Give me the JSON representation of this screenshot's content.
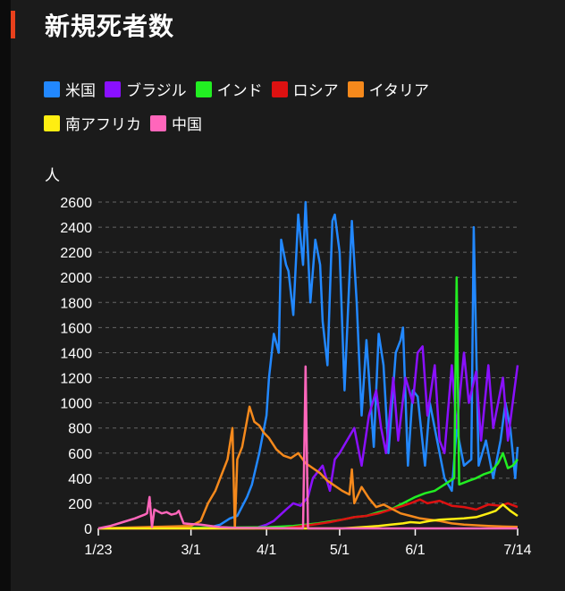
{
  "title": "新規死者数",
  "chart_data": {
    "type": "line",
    "title": "新規死者数",
    "ylabel": "人",
    "xlabel": "",
    "ylim": [
      0,
      2600
    ],
    "yticks": [
      "0",
      "200",
      "400",
      "600",
      "800",
      "1000",
      "1200",
      "1400",
      "1600",
      "1800",
      "2000",
      "2200",
      "2400",
      "2600"
    ],
    "x_unit": "days since 1/23",
    "xlim": [
      0,
      172
    ],
    "xticks": [
      {
        "label": "1/23",
        "day": 0
      },
      {
        "label": "3/1",
        "day": 38
      },
      {
        "label": "4/1",
        "day": 69
      },
      {
        "label": "5/1",
        "day": 99
      },
      {
        "label": "6/1",
        "day": 130
      },
      {
        "label": "7/14",
        "day": 172
      }
    ],
    "grid": true,
    "legend_position": "top",
    "series": [
      {
        "name": "米国",
        "color": "#2288ff",
        "points": [
          [
            0,
            0
          ],
          [
            44,
            0
          ],
          [
            50,
            30
          ],
          [
            54,
            80
          ],
          [
            57,
            100
          ],
          [
            61,
            250
          ],
          [
            63,
            350
          ],
          [
            66,
            600
          ],
          [
            69,
            900
          ],
          [
            70,
            1200
          ],
          [
            72,
            1550
          ],
          [
            74,
            1400
          ],
          [
            75,
            2300
          ],
          [
            77,
            2100
          ],
          [
            78,
            2050
          ],
          [
            80,
            1700
          ],
          [
            82,
            2500
          ],
          [
            84,
            2100
          ],
          [
            85,
            2600
          ],
          [
            87,
            1800
          ],
          [
            89,
            2300
          ],
          [
            91,
            2100
          ],
          [
            92,
            1650
          ],
          [
            94,
            1300
          ],
          [
            96,
            2450
          ],
          [
            97,
            2500
          ],
          [
            99,
            2200
          ],
          [
            101,
            1100
          ],
          [
            104,
            2450
          ],
          [
            106,
            1800
          ],
          [
            108,
            900
          ],
          [
            110,
            1500
          ],
          [
            113,
            650
          ],
          [
            115,
            1550
          ],
          [
            117,
            1300
          ],
          [
            119,
            600
          ],
          [
            122,
            1400
          ],
          [
            124,
            1500
          ],
          [
            125,
            1600
          ],
          [
            127,
            500
          ],
          [
            129,
            1100
          ],
          [
            131,
            1050
          ],
          [
            134,
            500
          ],
          [
            136,
            1000
          ],
          [
            139,
            700
          ],
          [
            142,
            400
          ],
          [
            145,
            300
          ],
          [
            147,
            800
          ],
          [
            150,
            500
          ],
          [
            153,
            550
          ],
          [
            154,
            2400
          ],
          [
            156,
            500
          ],
          [
            159,
            700
          ],
          [
            162,
            400
          ],
          [
            165,
            700
          ],
          [
            167,
            1000
          ],
          [
            169,
            800
          ],
          [
            171,
            400
          ],
          [
            172,
            650
          ]
        ]
      },
      {
        "name": "ブラジル",
        "color": "#8a10ff",
        "points": [
          [
            0,
            0
          ],
          [
            64,
            0
          ],
          [
            69,
            30
          ],
          [
            72,
            60
          ],
          [
            77,
            150
          ],
          [
            80,
            200
          ],
          [
            83,
            180
          ],
          [
            86,
            250
          ],
          [
            88,
            400
          ],
          [
            92,
            500
          ],
          [
            95,
            300
          ],
          [
            97,
            550
          ],
          [
            99,
            600
          ],
          [
            102,
            700
          ],
          [
            105,
            800
          ],
          [
            108,
            500
          ],
          [
            111,
            900
          ],
          [
            114,
            1100
          ],
          [
            116,
            800
          ],
          [
            118,
            600
          ],
          [
            121,
            1200
          ],
          [
            123,
            700
          ],
          [
            126,
            1200
          ],
          [
            129,
            1000
          ],
          [
            131,
            1400
          ],
          [
            133,
            1450
          ],
          [
            135,
            900
          ],
          [
            138,
            1300
          ],
          [
            140,
            700
          ],
          [
            142,
            600
          ],
          [
            145,
            1300
          ],
          [
            147,
            800
          ],
          [
            150,
            1400
          ],
          [
            152,
            1000
          ],
          [
            155,
            1250
          ],
          [
            157,
            700
          ],
          [
            160,
            1300
          ],
          [
            162,
            800
          ],
          [
            166,
            1200
          ],
          [
            168,
            700
          ],
          [
            170,
            1000
          ],
          [
            172,
            1300
          ]
        ]
      },
      {
        "name": "インド",
        "color": "#22ee22",
        "points": [
          [
            0,
            0
          ],
          [
            70,
            10
          ],
          [
            80,
            20
          ],
          [
            90,
            40
          ],
          [
            100,
            70
          ],
          [
            105,
            90
          ],
          [
            110,
            100
          ],
          [
            115,
            130
          ],
          [
            120,
            150
          ],
          [
            125,
            200
          ],
          [
            130,
            250
          ],
          [
            134,
            280
          ],
          [
            138,
            300
          ],
          [
            142,
            350
          ],
          [
            146,
            400
          ],
          [
            147,
            2000
          ],
          [
            148,
            350
          ],
          [
            152,
            380
          ],
          [
            155,
            400
          ],
          [
            158,
            430
          ],
          [
            161,
            450
          ],
          [
            164,
            520
          ],
          [
            166,
            600
          ],
          [
            168,
            480
          ],
          [
            170,
            500
          ],
          [
            172,
            550
          ]
        ]
      },
      {
        "name": "ロシア",
        "color": "#dd1111",
        "points": [
          [
            0,
            0
          ],
          [
            75,
            0
          ],
          [
            80,
            10
          ],
          [
            88,
            30
          ],
          [
            95,
            50
          ],
          [
            100,
            70
          ],
          [
            105,
            90
          ],
          [
            110,
            100
          ],
          [
            115,
            120
          ],
          [
            120,
            150
          ],
          [
            125,
            180
          ],
          [
            128,
            200
          ],
          [
            132,
            230
          ],
          [
            135,
            200
          ],
          [
            140,
            220
          ],
          [
            145,
            180
          ],
          [
            150,
            170
          ],
          [
            155,
            150
          ],
          [
            160,
            190
          ],
          [
            165,
            180
          ],
          [
            168,
            200
          ],
          [
            172,
            170
          ]
        ]
      },
      {
        "name": "イタリア",
        "color": "#f5891c",
        "points": [
          [
            0,
            0
          ],
          [
            38,
            20
          ],
          [
            42,
            60
          ],
          [
            45,
            200
          ],
          [
            48,
            300
          ],
          [
            50,
            400
          ],
          [
            53,
            550
          ],
          [
            55,
            800
          ],
          [
            56,
            0
          ],
          [
            57,
            550
          ],
          [
            59,
            650
          ],
          [
            62,
            970
          ],
          [
            64,
            850
          ],
          [
            66,
            820
          ],
          [
            68,
            760
          ],
          [
            70,
            720
          ],
          [
            73,
            630
          ],
          [
            76,
            580
          ],
          [
            79,
            560
          ],
          [
            82,
            600
          ],
          [
            85,
            520
          ],
          [
            88,
            480
          ],
          [
            91,
            440
          ],
          [
            94,
            380
          ],
          [
            97,
            340
          ],
          [
            100,
            300
          ],
          [
            103,
            270
          ],
          [
            104,
            470
          ],
          [
            105,
            200
          ],
          [
            108,
            330
          ],
          [
            111,
            240
          ],
          [
            114,
            170
          ],
          [
            117,
            190
          ],
          [
            120,
            160
          ],
          [
            124,
            120
          ],
          [
            128,
            100
          ],
          [
            132,
            80
          ],
          [
            136,
            70
          ],
          [
            140,
            60
          ],
          [
            145,
            40
          ],
          [
            150,
            30
          ],
          [
            155,
            25
          ],
          [
            160,
            20
          ],
          [
            166,
            15
          ],
          [
            172,
            12
          ]
        ]
      },
      {
        "name": "南アフリカ",
        "color": "#ffee11",
        "points": [
          [
            0,
            0
          ],
          [
            100,
            0
          ],
          [
            108,
            10
          ],
          [
            115,
            20
          ],
          [
            120,
            30
          ],
          [
            125,
            40
          ],
          [
            128,
            50
          ],
          [
            132,
            45
          ],
          [
            136,
            60
          ],
          [
            140,
            70
          ],
          [
            145,
            75
          ],
          [
            150,
            80
          ],
          [
            155,
            90
          ],
          [
            160,
            120
          ],
          [
            163,
            140
          ],
          [
            166,
            190
          ],
          [
            169,
            140
          ],
          [
            172,
            100
          ]
        ]
      },
      {
        "name": "中国",
        "color": "#ff66bb",
        "points": [
          [
            0,
            0
          ],
          [
            5,
            20
          ],
          [
            10,
            50
          ],
          [
            15,
            80
          ],
          [
            19,
            110
          ],
          [
            20,
            120
          ],
          [
            21,
            250
          ],
          [
            22,
            10
          ],
          [
            23,
            150
          ],
          [
            26,
            120
          ],
          [
            28,
            130
          ],
          [
            30,
            110
          ],
          [
            32,
            120
          ],
          [
            33,
            140
          ],
          [
            35,
            40
          ],
          [
            38,
            35
          ],
          [
            42,
            30
          ],
          [
            46,
            20
          ],
          [
            50,
            10
          ],
          [
            55,
            5
          ],
          [
            84,
            0
          ],
          [
            85,
            1290
          ],
          [
            86,
            0
          ],
          [
            172,
            0
          ]
        ]
      }
    ]
  }
}
